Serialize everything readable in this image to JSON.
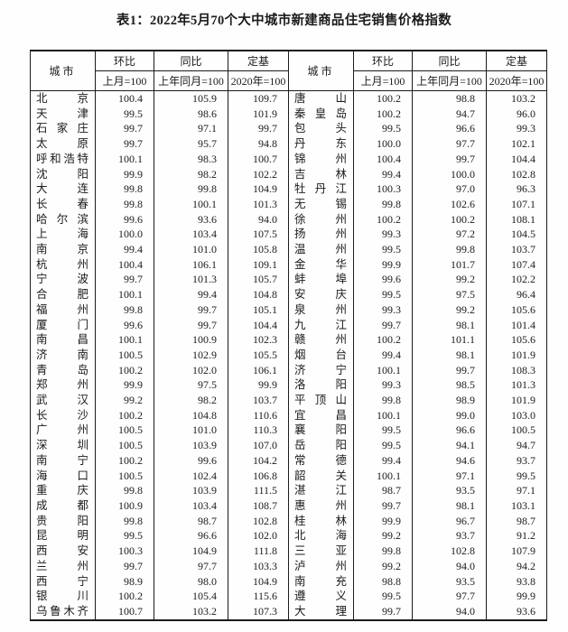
{
  "title": "表1：2022年5月70个大中城市新建商品住宅销售价格指数",
  "colors": {
    "background": "#fefefe",
    "text": "#1b1b1b",
    "border": "#1b1b1b"
  },
  "table": {
    "header": {
      "city": "城市",
      "mom": "环比",
      "mom_base": "上月=100",
      "yoy": "同比",
      "yoy_base": "上年同月=100",
      "fixed": "定基",
      "fixed_base": "2020年=100"
    },
    "columns_order": [
      "city",
      "mom",
      "yoy",
      "fixed"
    ],
    "left_rows": [
      [
        "北京",
        "100.4",
        "105.9",
        "109.7"
      ],
      [
        "天津",
        "99.5",
        "98.6",
        "101.9"
      ],
      [
        "石家庄",
        "99.7",
        "97.1",
        "99.7"
      ],
      [
        "太原",
        "99.7",
        "95.7",
        "94.8"
      ],
      [
        "呼和浩特",
        "100.1",
        "98.3",
        "100.7"
      ],
      [
        "沈阳",
        "99.9",
        "98.2",
        "102.2"
      ],
      [
        "大连",
        "99.8",
        "99.8",
        "104.9"
      ],
      [
        "长春",
        "99.8",
        "100.1",
        "101.3"
      ],
      [
        "哈尔滨",
        "99.6",
        "93.6",
        "94.0"
      ],
      [
        "上海",
        "100.0",
        "103.4",
        "107.5"
      ],
      [
        "南京",
        "99.4",
        "101.0",
        "105.8"
      ],
      [
        "杭州",
        "100.4",
        "106.1",
        "109.1"
      ],
      [
        "宁波",
        "99.7",
        "101.3",
        "105.7"
      ],
      [
        "合肥",
        "100.1",
        "99.4",
        "104.8"
      ],
      [
        "福州",
        "99.8",
        "99.7",
        "105.1"
      ],
      [
        "厦门",
        "99.6",
        "99.7",
        "104.4"
      ],
      [
        "南昌",
        "100.1",
        "100.9",
        "102.3"
      ],
      [
        "济南",
        "100.5",
        "102.9",
        "105.5"
      ],
      [
        "青岛",
        "100.2",
        "102.0",
        "106.1"
      ],
      [
        "郑州",
        "99.9",
        "97.5",
        "99.9"
      ],
      [
        "武汉",
        "99.2",
        "98.2",
        "103.7"
      ],
      [
        "长沙",
        "100.2",
        "104.8",
        "110.6"
      ],
      [
        "广州",
        "100.5",
        "101.0",
        "110.3"
      ],
      [
        "深圳",
        "100.5",
        "103.9",
        "107.0"
      ],
      [
        "南宁",
        "100.2",
        "99.6",
        "104.2"
      ],
      [
        "海口",
        "100.5",
        "102.4",
        "106.8"
      ],
      [
        "重庆",
        "99.8",
        "103.9",
        "111.5"
      ],
      [
        "成都",
        "100.9",
        "103.4",
        "108.7"
      ],
      [
        "贵阳",
        "99.8",
        "98.7",
        "102.8"
      ],
      [
        "昆明",
        "99.5",
        "96.6",
        "102.0"
      ],
      [
        "西安",
        "100.3",
        "104.9",
        "111.8"
      ],
      [
        "兰州",
        "99.7",
        "97.7",
        "103.3"
      ],
      [
        "西宁",
        "98.9",
        "98.0",
        "104.9"
      ],
      [
        "银川",
        "100.2",
        "105.4",
        "115.6"
      ],
      [
        "乌鲁木齐",
        "100.7",
        "103.2",
        "107.3"
      ]
    ],
    "right_rows": [
      [
        "唐山",
        "100.2",
        "98.8",
        "103.2"
      ],
      [
        "秦皇岛",
        "100.2",
        "94.7",
        "96.0"
      ],
      [
        "包头",
        "99.5",
        "96.6",
        "99.3"
      ],
      [
        "丹东",
        "100.0",
        "97.7",
        "102.1"
      ],
      [
        "锦州",
        "100.4",
        "99.7",
        "104.4"
      ],
      [
        "吉林",
        "99.4",
        "100.0",
        "102.8"
      ],
      [
        "牡丹江",
        "100.3",
        "97.0",
        "96.3"
      ],
      [
        "无锡",
        "99.8",
        "102.6",
        "107.1"
      ],
      [
        "徐州",
        "100.2",
        "100.2",
        "108.1"
      ],
      [
        "扬州",
        "99.3",
        "97.2",
        "104.5"
      ],
      [
        "温州",
        "99.5",
        "99.8",
        "103.7"
      ],
      [
        "金华",
        "99.9",
        "101.7",
        "107.4"
      ],
      [
        "蚌埠",
        "99.6",
        "99.2",
        "102.2"
      ],
      [
        "安庆",
        "99.5",
        "97.5",
        "96.4"
      ],
      [
        "泉州",
        "99.3",
        "99.2",
        "105.6"
      ],
      [
        "九江",
        "99.7",
        "98.1",
        "101.4"
      ],
      [
        "赣州",
        "100.2",
        "101.1",
        "105.6"
      ],
      [
        "烟台",
        "99.4",
        "98.1",
        "101.9"
      ],
      [
        "济宁",
        "100.1",
        "99.7",
        "108.3"
      ],
      [
        "洛阳",
        "99.3",
        "98.5",
        "101.3"
      ],
      [
        "平顶山",
        "99.8",
        "98.9",
        "101.9"
      ],
      [
        "宜昌",
        "100.1",
        "99.0",
        "103.0"
      ],
      [
        "襄阳",
        "99.5",
        "96.6",
        "100.5"
      ],
      [
        "岳阳",
        "99.5",
        "94.1",
        "94.7"
      ],
      [
        "常德",
        "99.4",
        "94.6",
        "93.7"
      ],
      [
        "韶关",
        "100.1",
        "97.1",
        "99.5"
      ],
      [
        "湛江",
        "98.7",
        "93.5",
        "97.1"
      ],
      [
        "惠州",
        "99.7",
        "98.1",
        "103.1"
      ],
      [
        "桂林",
        "99.9",
        "96.7",
        "98.7"
      ],
      [
        "北海",
        "99.2",
        "93.7",
        "91.2"
      ],
      [
        "三亚",
        "99.8",
        "102.8",
        "107.9"
      ],
      [
        "泸州",
        "99.2",
        "94.0",
        "94.2"
      ],
      [
        "南充",
        "98.8",
        "93.5",
        "93.8"
      ],
      [
        "遵义",
        "99.5",
        "97.7",
        "99.9"
      ],
      [
        "大理",
        "99.7",
        "94.0",
        "93.6"
      ]
    ]
  }
}
